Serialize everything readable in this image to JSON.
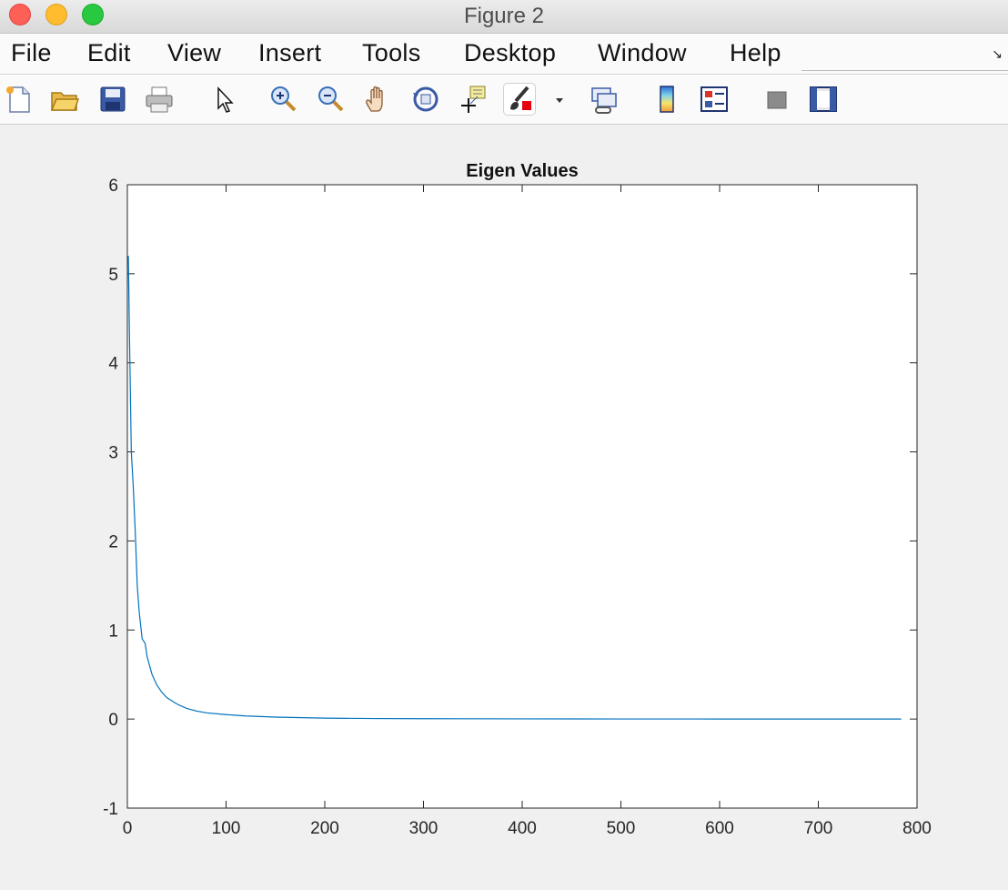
{
  "window": {
    "title": "Figure 2"
  },
  "menu": [
    "File",
    "Edit",
    "View",
    "Insert",
    "Tools",
    "Desktop",
    "Window",
    "Help"
  ],
  "toolbar": {
    "icons": [
      "new-figure-icon",
      "open-file-icon",
      "save-icon",
      "print-icon",
      "pointer-icon",
      "zoom-in-icon",
      "zoom-out-icon",
      "pan-icon",
      "rotate-3d-icon",
      "data-cursor-icon",
      "brush-icon",
      "link-plot-icon",
      "colorbar-icon",
      "legend-icon",
      "hide-plot-tools-icon",
      "show-plot-tools-icon"
    ]
  },
  "chart_data": {
    "type": "line",
    "title": "Eigen Values",
    "xlabel": "",
    "ylabel": "",
    "xlim": [
      0,
      800
    ],
    "ylim": [
      -1,
      6
    ],
    "xticks": [
      0,
      100,
      200,
      300,
      400,
      500,
      600,
      700,
      800
    ],
    "yticks": [
      -1,
      0,
      1,
      2,
      3,
      4,
      5,
      6
    ],
    "grid": false,
    "line_color": "#0072bd",
    "series": [
      {
        "x": [
          1,
          2,
          3,
          4,
          5,
          6,
          8,
          10,
          12,
          15,
          18,
          20,
          25,
          30,
          35,
          40,
          50,
          60,
          70,
          80,
          100,
          120,
          150,
          200,
          250,
          300,
          400,
          500,
          600,
          700,
          784
        ],
        "values": [
          5.2,
          4.4,
          3.7,
          3.0,
          2.8,
          2.6,
          2.1,
          1.5,
          1.2,
          0.9,
          0.85,
          0.7,
          0.5,
          0.38,
          0.3,
          0.24,
          0.17,
          0.12,
          0.09,
          0.07,
          0.05,
          0.035,
          0.022,
          0.01,
          0.006,
          0.004,
          0.002,
          0.001,
          0.0005,
          0.0002,
          0.0
        ]
      }
    ]
  }
}
